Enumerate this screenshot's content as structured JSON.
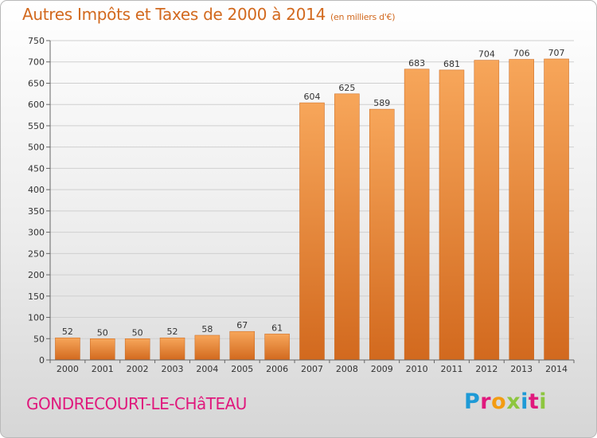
{
  "title": "Autres Impôts et Taxes de 2000 à 2014",
  "subtitle": "(en milliers d'€)",
  "place": "GONDRECOURT-LE-CHâTEAU",
  "logo": "Proxiti",
  "colors": {
    "title": "#d2691e",
    "place": "#e0197d",
    "bar_light": "#f7a65a",
    "bar_dark": "#d2691e"
  },
  "chart_data": {
    "type": "bar",
    "title": "Autres Impôts et Taxes de 2000 à 2014",
    "subtitle": "(en milliers d'€)",
    "xlabel": "",
    "ylabel": "",
    "ylim": [
      0,
      750
    ],
    "yticks": [
      0,
      50,
      100,
      150,
      200,
      250,
      300,
      350,
      400,
      450,
      500,
      550,
      600,
      650,
      700,
      750
    ],
    "grid": true,
    "categories": [
      "2000",
      "2001",
      "2002",
      "2003",
      "2004",
      "2005",
      "2006",
      "2007",
      "2008",
      "2009",
      "2010",
      "2011",
      "2012",
      "2013",
      "2014"
    ],
    "values": [
      52,
      50,
      50,
      52,
      58,
      67,
      61,
      604,
      625,
      589,
      683,
      681,
      704,
      706,
      707
    ]
  }
}
